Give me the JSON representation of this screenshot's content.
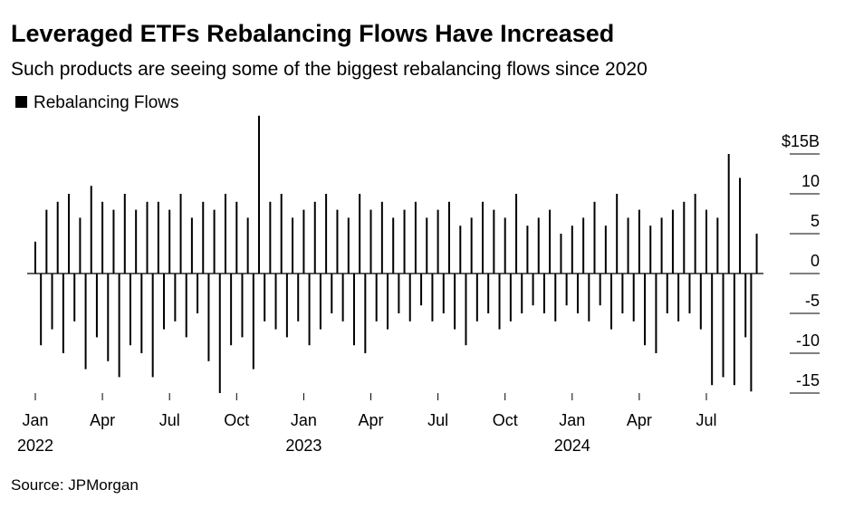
{
  "chart_data": {
    "type": "bar",
    "title": "Leveraged ETFs Rebalancing Flows Have Increased",
    "subtitle": "Such products are seeing some of the biggest rebalancing flows since 2020",
    "source": "Source: JPMorgan",
    "series": [
      {
        "name": "Rebalancing Flows",
        "color": "#000000",
        "values": [
          4,
          -9,
          8,
          -7,
          9,
          -10,
          10,
          -6,
          7,
          -12,
          11,
          -8,
          9,
          -11,
          8,
          -13,
          10,
          -9,
          8,
          -10,
          9,
          -13,
          9,
          -7,
          8,
          -6,
          10,
          -8,
          7,
          -5,
          9,
          -11,
          8,
          -15,
          10,
          -9,
          9,
          -8,
          7,
          -12,
          19.8,
          -6,
          9,
          -7,
          10,
          -8,
          7,
          -6,
          8,
          -9,
          9,
          -7,
          10,
          -5,
          8,
          -6,
          7,
          -9,
          10,
          -10,
          8,
          -6,
          9,
          -7,
          7,
          -5,
          8,
          -6,
          9,
          -4,
          7,
          -6,
          8,
          -5,
          9,
          -7,
          6,
          -9,
          7,
          -6,
          9,
          -5,
          8,
          -7,
          7,
          -6,
          10,
          -5,
          6,
          -4,
          7,
          -5,
          8,
          -6,
          5,
          -4,
          6,
          -5,
          7,
          -6,
          9,
          -4,
          6,
          -7,
          10,
          -5,
          7,
          -6,
          8,
          -9,
          6,
          -10,
          7,
          -5,
          8,
          -6,
          9,
          -5,
          10,
          -7,
          8,
          -14,
          7,
          -13,
          15,
          -14,
          12,
          -8,
          -14.8,
          5
        ]
      }
    ],
    "categories_count_note": null,
    "xticks": [
      {
        "value": 0,
        "label": "Jan",
        "year": "2022"
      },
      {
        "value": 12,
        "label": "Apr"
      },
      {
        "value": 24,
        "label": "Jul"
      },
      {
        "value": 36,
        "label": "Oct"
      },
      {
        "value": 48,
        "label": "Jan",
        "year": "2023"
      },
      {
        "value": 60,
        "label": "Apr"
      },
      {
        "value": 72,
        "label": "Jul"
      },
      {
        "value": 84,
        "label": "Oct"
      },
      {
        "value": 96,
        "label": "Jan",
        "year": "2024"
      },
      {
        "value": 108,
        "label": "Apr"
      },
      {
        "value": 120,
        "label": "Jul"
      }
    ],
    "ylim": [
      -16,
      20
    ],
    "yticks": [
      {
        "value": 15,
        "label": "$15B"
      },
      10,
      5,
      0,
      -5,
      -10,
      -15
    ]
  }
}
